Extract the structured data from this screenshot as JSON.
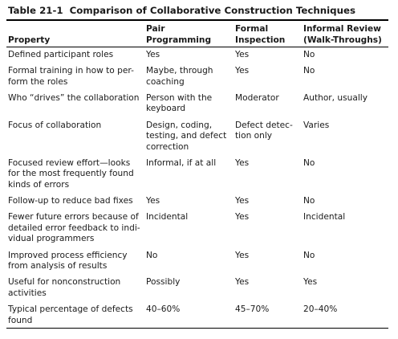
{
  "title": {
    "label": "Table 21-1",
    "text": "Comparison of Collaborative Construction Techniques"
  },
  "table": {
    "header": [
      [
        "Property"
      ],
      [
        "Pair",
        "Programming"
      ],
      [
        "Formal",
        "Inspection"
      ],
      [
        "Informal Review",
        "(Walk-Throughs)"
      ]
    ],
    "rows": [
      [
        [
          "Defined participant roles"
        ],
        [
          "Yes"
        ],
        [
          "Yes"
        ],
        [
          "No"
        ]
      ],
      [
        [
          "Formal training in how to per-",
          "form the roles"
        ],
        [
          "Maybe, through",
          "coaching"
        ],
        [
          "Yes"
        ],
        [
          "No"
        ]
      ],
      [
        [
          "Who “drives” the collaboration"
        ],
        [
          "Person with the",
          "keyboard"
        ],
        [
          "Moderator"
        ],
        [
          "Author, usually"
        ]
      ],
      [
        [
          "Focus of collaboration"
        ],
        [
          "Design, coding,",
          "testing, and defect",
          "correction"
        ],
        [
          "Defect detec-",
          "tion only"
        ],
        [
          "Varies"
        ]
      ],
      [
        [
          "Focused review effort—looks",
          "for the most frequently found",
          "kinds of errors"
        ],
        [
          "Informal, if at all"
        ],
        [
          "Yes"
        ],
        [
          "No"
        ]
      ],
      [
        [
          "Follow-up to reduce bad fixes"
        ],
        [
          "Yes"
        ],
        [
          "Yes"
        ],
        [
          "No"
        ]
      ],
      [
        [
          "Fewer future errors because of",
          "detailed error feedback to indi-",
          "vidual programmers"
        ],
        [
          "Incidental"
        ],
        [
          "Yes"
        ],
        [
          "Incidental"
        ]
      ],
      [
        [
          "Improved process efficiency",
          "from analysis of results"
        ],
        [
          "No"
        ],
        [
          "Yes"
        ],
        [
          "No"
        ]
      ],
      [
        [
          "Useful for nonconstruction",
          "activities"
        ],
        [
          "Possibly"
        ],
        [
          "Yes"
        ],
        [
          "Yes"
        ]
      ],
      [
        [
          "Typical percentage of defects",
          "found"
        ],
        [
          "40–60%"
        ],
        [
          "45–70%"
        ],
        [
          "20–40%"
        ]
      ]
    ]
  }
}
